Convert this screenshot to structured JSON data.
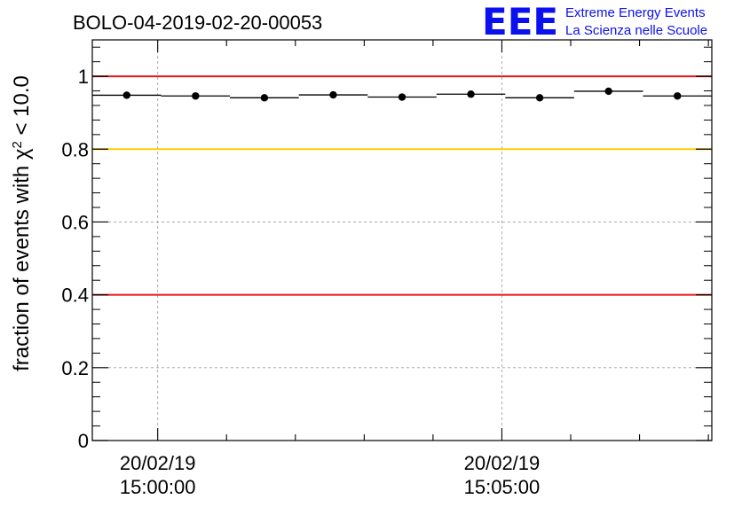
{
  "chart_data": {
    "type": "scatter",
    "title": "BOLO-04-2019-02-20-00053",
    "ylabel_prefix": "fraction of events with χ",
    "ylabel_sup": "2",
    "ylabel_suffix": " < 10.0",
    "xlabel": "",
    "ylim": [
      0,
      1.1
    ],
    "y_ticks": [
      "0",
      "0.2",
      "0.4",
      "0.6",
      "0.8",
      "1"
    ],
    "x_time_labels": [
      {
        "date": "20/02/19",
        "time": "15:00:00"
      },
      {
        "date": "20/02/19",
        "time": "15:05:00"
      }
    ],
    "x_range_minutes": [
      -0.95,
      8.05
    ],
    "grid": true,
    "reference_lines": [
      {
        "y": 1.0,
        "color": "#e8151b"
      },
      {
        "y": 0.8,
        "color": "#ffcc00"
      },
      {
        "y": 0.4,
        "color": "#e8151b"
      }
    ],
    "series": [
      {
        "x_bins_minutes": [
          [
            -0.95,
            0.05
          ],
          [
            0.05,
            1.05
          ],
          [
            1.05,
            2.05
          ],
          [
            2.05,
            3.05
          ],
          [
            3.05,
            4.05
          ],
          [
            4.05,
            5.05
          ],
          [
            5.05,
            6.05
          ],
          [
            6.05,
            7.05
          ],
          [
            7.05,
            8.05
          ]
        ],
        "values": [
          0.948,
          0.946,
          0.941,
          0.949,
          0.943,
          0.951,
          0.941,
          0.959,
          0.946
        ]
      }
    ]
  },
  "logo": {
    "big": "EEE",
    "line1": "Extreme Energy Events",
    "line2": "La Scienza nelle Scuole",
    "color": "#0b10ee"
  }
}
